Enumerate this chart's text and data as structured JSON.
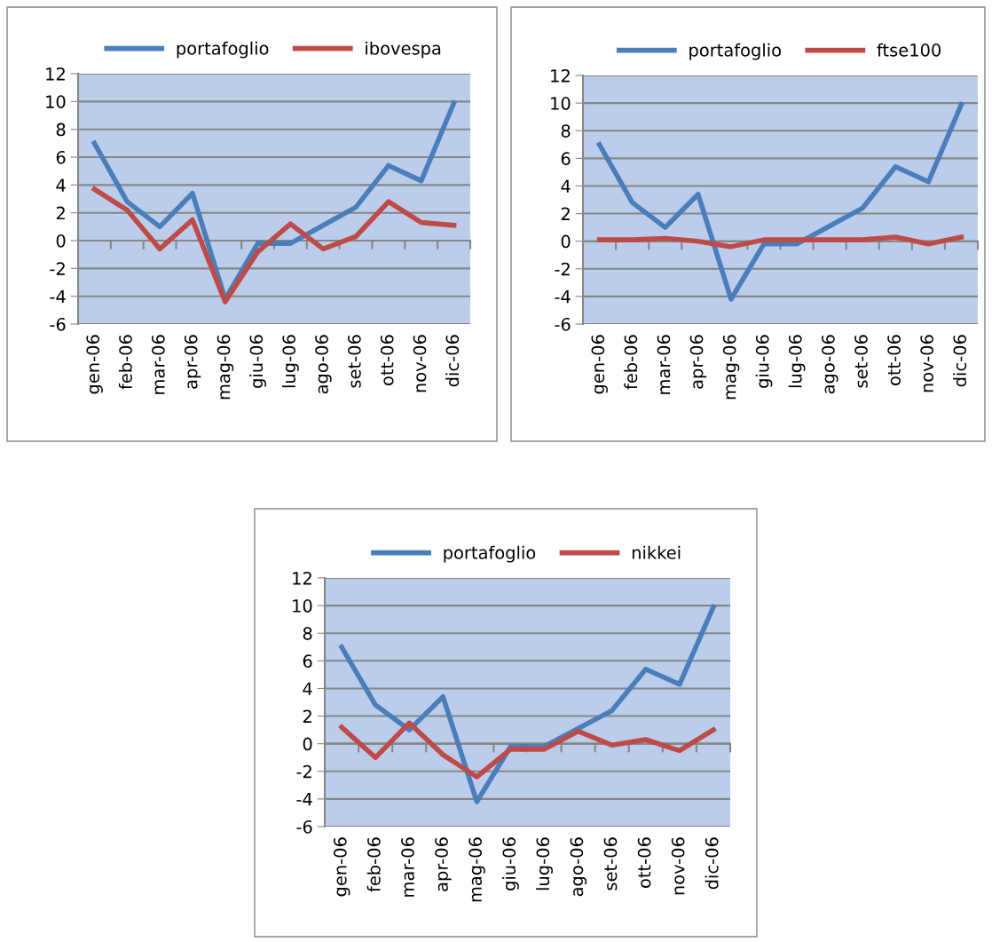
{
  "chart_data": [
    {
      "type": "line",
      "categories": [
        "gen-06",
        "feb-06",
        "mar-06",
        "apr-06",
        "mag-06",
        "giu-06",
        "lug-06",
        "ago-06",
        "set-06",
        "ott-06",
        "nov-06",
        "dic-06"
      ],
      "series": [
        {
          "name": "portafoglio",
          "color": "#4a7ebb",
          "values": [
            7.0,
            2.8,
            1.0,
            3.4,
            -4.2,
            -0.2,
            -0.2,
            1.1,
            2.4,
            5.4,
            4.3,
            9.9
          ]
        },
        {
          "name": "ibovespa",
          "color": "#be4b48",
          "values": [
            3.7,
            2.2,
            -0.6,
            1.5,
            -4.4,
            -0.8,
            1.2,
            -0.6,
            0.3,
            2.8,
            1.3,
            1.1
          ]
        }
      ],
      "ylim": [
        -6,
        12
      ],
      "yticks": [
        -6,
        -4,
        -2,
        0,
        2,
        4,
        6,
        8,
        10,
        12
      ],
      "grid": "y",
      "legend": "top",
      "marker": "none",
      "line_style": "solid"
    },
    {
      "type": "line",
      "categories": [
        "gen-06",
        "feb-06",
        "mar-06",
        "apr-06",
        "mag-06",
        "giu-06",
        "lug-06",
        "ago-06",
        "set-06",
        "ott-06",
        "nov-06",
        "dic-06"
      ],
      "series": [
        {
          "name": "portafoglio",
          "color": "#4a7ebb",
          "values": [
            7.0,
            2.8,
            1.0,
            3.4,
            -4.2,
            -0.2,
            -0.2,
            1.1,
            2.4,
            5.4,
            4.3,
            9.9
          ]
        },
        {
          "name": "ftse100",
          "color": "#be4b48",
          "values": [
            0.1,
            0.1,
            0.2,
            0.0,
            -0.4,
            0.1,
            0.1,
            0.1,
            0.1,
            0.3,
            -0.2,
            0.3
          ]
        }
      ],
      "ylim": [
        -6,
        12
      ],
      "yticks": [
        -6,
        -4,
        -2,
        0,
        2,
        4,
        6,
        8,
        10,
        12
      ],
      "grid": "y",
      "legend": "top",
      "marker": "none",
      "line_style": "solid"
    },
    {
      "type": "line",
      "categories": [
        "gen-06",
        "feb-06",
        "mar-06",
        "apr-06",
        "mag-06",
        "giu-06",
        "lug-06",
        "ago-06",
        "set-06",
        "ott-06",
        "nov-06",
        "dic-06"
      ],
      "series": [
        {
          "name": "portafoglio",
          "color": "#4a7ebb",
          "values": [
            7.0,
            2.8,
            1.0,
            3.4,
            -4.2,
            -0.2,
            -0.2,
            1.1,
            2.4,
            5.4,
            4.3,
            9.9
          ]
        },
        {
          "name": "nikkei",
          "color": "#be4b48",
          "values": [
            1.2,
            -1.0,
            1.5,
            -0.8,
            -2.4,
            -0.4,
            -0.4,
            0.9,
            -0.1,
            0.3,
            -0.5,
            1.0
          ]
        }
      ],
      "ylim": [
        -6,
        12
      ],
      "yticks": [
        -6,
        -4,
        -2,
        0,
        2,
        4,
        6,
        8,
        10,
        12
      ],
      "grid": "y",
      "legend": "top",
      "marker": "none",
      "line_style": "solid"
    }
  ]
}
